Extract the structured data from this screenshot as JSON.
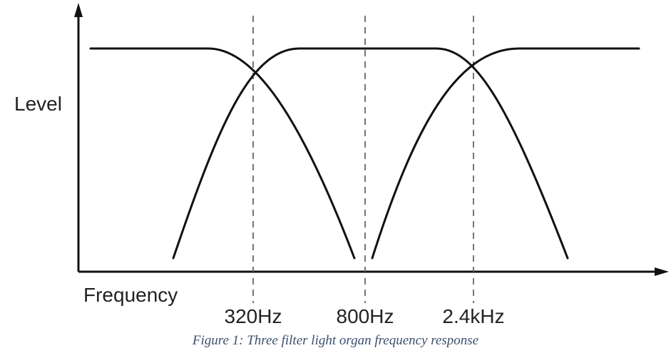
{
  "diagram": {
    "y_axis_label": "Level",
    "x_axis_label": "Frequency",
    "markers": [
      {
        "label": "320Hz"
      },
      {
        "label": "800Hz"
      },
      {
        "label": "2.4kHz"
      }
    ],
    "filters": [
      {
        "name": "low-pass"
      },
      {
        "name": "band-pass"
      },
      {
        "name": "high-pass"
      }
    ],
    "colors": {
      "curve": "#111111",
      "axis": "#111111",
      "guide": "#555555",
      "caption": "#3a5070"
    }
  },
  "caption": "Figure 1: Three filter light organ frequency response"
}
